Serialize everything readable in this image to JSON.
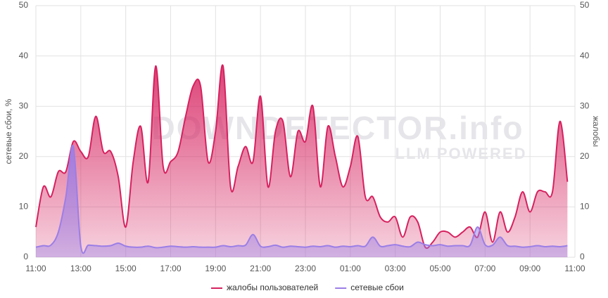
{
  "chart_data": {
    "type": "area",
    "ylabel": "сетевые сбои, %",
    "y2label": "жалобы",
    "watermark": "DOWNDETECTOR.info",
    "watermark_sub": "LLM POWERED",
    "categories": [
      "11:00",
      null,
      null,
      null,
      null,
      null,
      "13:00",
      null,
      null,
      null,
      null,
      null,
      "15:00",
      null,
      null,
      null,
      null,
      null,
      "17:00",
      null,
      null,
      null,
      null,
      null,
      "19:00",
      null,
      null,
      null,
      null,
      null,
      "21:00",
      null,
      null,
      null,
      null,
      null,
      "23:00",
      null,
      null,
      null,
      null,
      null,
      "01:00",
      null,
      null,
      null,
      null,
      null,
      "03:00",
      null,
      null,
      null,
      null,
      null,
      "05:00",
      null,
      null,
      null,
      null,
      null,
      "07:00",
      null,
      null,
      null,
      null,
      null,
      "09:00",
      null,
      null,
      null,
      null,
      null,
      "11:00"
    ],
    "series": [
      {
        "name": "жалобы пользователей",
        "color": "#d6215f",
        "axis": "y2",
        "values": [
          6,
          14,
          12,
          17,
          17,
          23,
          21,
          20,
          28,
          21,
          21,
          16,
          6,
          19,
          26,
          15,
          38,
          18,
          19,
          21,
          28,
          34,
          34,
          19,
          25,
          38,
          14,
          18,
          22,
          19,
          32,
          14,
          25,
          27,
          16,
          25,
          23,
          30,
          14,
          26,
          20,
          14,
          18,
          24,
          12,
          12,
          8,
          7,
          8,
          4,
          8,
          7,
          2,
          3,
          5,
          5,
          4,
          5,
          6,
          4,
          9,
          3,
          9,
          5,
          8,
          13,
          9,
          13,
          13,
          13,
          27,
          15,
          null
        ]
      },
      {
        "name": "сетевые сбои",
        "color": "#9b7ee6",
        "values": [
          2,
          2.3,
          2.4,
          5,
          12,
          22,
          2.2,
          2.4,
          2.3,
          2.2,
          2.3,
          2.8,
          2.2,
          2,
          2,
          2.2,
          1.9,
          2,
          2.2,
          2.1,
          2,
          2.1,
          2,
          2,
          2,
          2.3,
          2.1,
          2.3,
          2.4,
          4.5,
          2.2,
          2.1,
          2.4,
          2,
          2.2,
          2.1,
          2,
          2.2,
          2.1,
          2.3,
          2,
          2.2,
          2.1,
          2.3,
          2.2,
          4,
          2.2,
          2.3,
          2.5,
          2.2,
          2.1,
          3,
          2.5,
          2.3,
          2.5,
          2.2,
          2.3,
          2.3,
          2.4,
          6,
          2.5,
          2.4,
          4,
          2.3,
          2.2,
          2,
          2.1,
          2.3,
          2.1,
          2.2,
          2.1,
          2.3,
          null
        ]
      }
    ],
    "ylim": [
      0,
      50
    ],
    "yticks": [
      0,
      10,
      20,
      30,
      40,
      50
    ],
    "y2lim": [
      0,
      50
    ],
    "y2ticks": [
      0,
      10,
      20,
      30,
      40,
      50
    ],
    "grid": true,
    "legend": "bottom"
  }
}
